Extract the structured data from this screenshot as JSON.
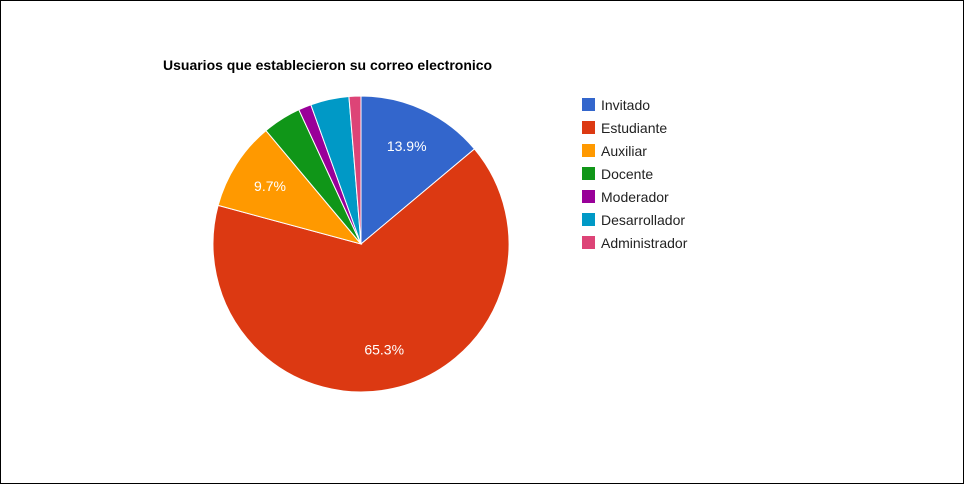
{
  "chart_data": {
    "type": "pie",
    "title": "Usuarios que establecieron su correo electronico",
    "legend_position": "right",
    "slices": [
      {
        "name": "Invitado",
        "value": 13.9,
        "label": "13.9%",
        "color": "#3366cc"
      },
      {
        "name": "Estudiante",
        "value": 65.3,
        "label": "65.3%",
        "color": "#dc3912"
      },
      {
        "name": "Auxiliar",
        "value": 9.7,
        "label": "9.7%",
        "color": "#ff9900"
      },
      {
        "name": "Docente",
        "value": 4.2,
        "label": "",
        "color": "#109618"
      },
      {
        "name": "Moderador",
        "value": 1.4,
        "label": "",
        "color": "#990099"
      },
      {
        "name": "Desarrollador",
        "value": 4.2,
        "label": "",
        "color": "#0099c6"
      },
      {
        "name": "Administrador",
        "value": 1.3,
        "label": "",
        "color": "#dd4477"
      }
    ]
  }
}
